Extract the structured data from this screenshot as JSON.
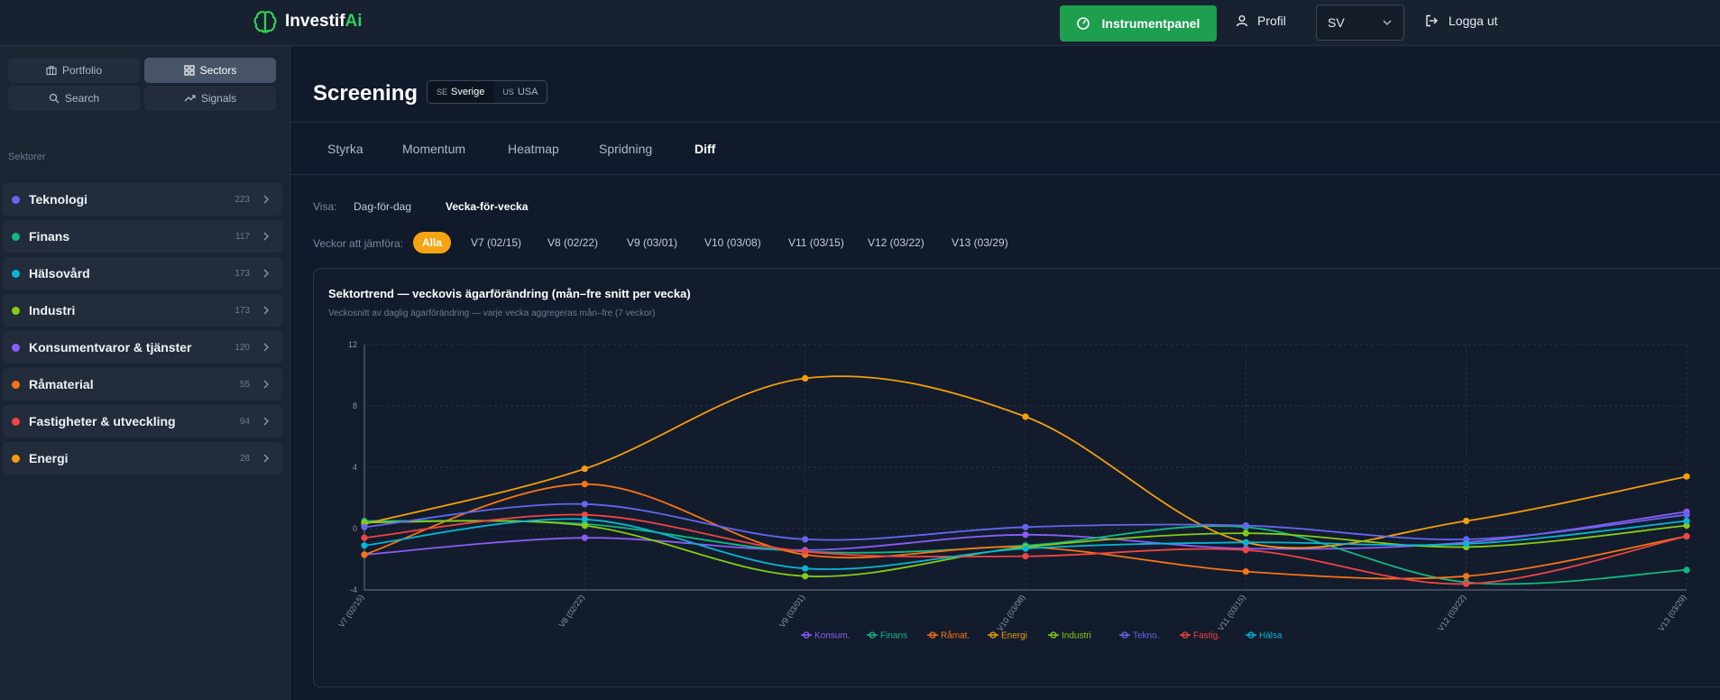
{
  "header": {
    "brand_name_main": "Investif",
    "brand_name_accent": "Ai",
    "dashboard_label": "Instrumentpanel",
    "profile_label": "Profil",
    "language_value": "SV",
    "logout_label": "Logga ut",
    "accent_color": "#1e9e4f"
  },
  "sidebar": {
    "nav": [
      {
        "label": "Portfolio",
        "icon": "briefcase-icon",
        "active": false
      },
      {
        "label": "Sectors",
        "icon": "grid-icon",
        "active": true
      },
      {
        "label": "Search",
        "icon": "search-icon",
        "active": false
      },
      {
        "label": "Signals",
        "icon": "trend-icon",
        "active": false
      }
    ],
    "heading": "Sektorer",
    "sectors": [
      {
        "label": "Teknologi",
        "count": "223",
        "color": "#6366f1"
      },
      {
        "label": "Finans",
        "count": "117",
        "color": "#10b981"
      },
      {
        "label": "Hälsovård",
        "count": "173",
        "color": "#06b6d4"
      },
      {
        "label": "Industri",
        "count": "173",
        "color": "#84cc16"
      },
      {
        "label": "Konsumentvaror & tjänster",
        "count": "120",
        "color": "#8b5cf6"
      },
      {
        "label": "Råmaterial",
        "count": "55",
        "color": "#f97316"
      },
      {
        "label": "Fastigheter & utveckling",
        "count": "94",
        "color": "#ef4444"
      },
      {
        "label": "Energi",
        "count": "28",
        "color": "#f59e0b"
      }
    ]
  },
  "main": {
    "title": "Screening",
    "markets": [
      {
        "code": "SE",
        "label": "Sverige",
        "active": true
      },
      {
        "code": "US",
        "label": "USA",
        "active": false
      }
    ],
    "tabs": [
      "Styrka",
      "Momentum",
      "Heatmap",
      "Spridning",
      "Diff"
    ],
    "active_tab": "Diff",
    "view_label": "Visa:",
    "view_options": [
      "Dag-för-dag",
      "Vecka-för-vecka"
    ],
    "active_view": "Vecka-för-vecka",
    "weeks_label": "Veckor att jämföra:",
    "weeks": [
      "Alla",
      "V7 (02/15)",
      "V8 (02/22)",
      "V9 (03/01)",
      "V10 (03/08)",
      "V11 (03/15)",
      "V12 (03/22)",
      "V13 (03/29)"
    ],
    "active_week": "Alla"
  },
  "chart_data": {
    "type": "line",
    "title": "Sektortrend — veckovis ägarförändring (mån–fre snitt per vecka)",
    "subtitle": "Veckosnitt av daglig ägarförändring — varje vecka aggregeras mån–fre (7 veckor)",
    "x": [
      "V7 (02/15)",
      "V8 (02/22)",
      "V9 (03/01)",
      "V10 (03/08)",
      "V11 (03/15)",
      "V12 (03/22)",
      "V13 (03/29)"
    ],
    "ylim": [
      -4,
      12
    ],
    "yticks": [
      12,
      8,
      4,
      0,
      -4
    ],
    "grid": true,
    "legend_position": "bottom",
    "series": [
      {
        "name": "Konsum.",
        "color": "#8b5cf6",
        "values": [
          -1.7,
          -0.6,
          -1.4,
          -0.4,
          -1.3,
          -0.9,
          1.1
        ]
      },
      {
        "name": "Finans",
        "color": "#10b981",
        "values": [
          0.5,
          0.3,
          -1.5,
          -1.1,
          0.1,
          -3.5,
          -2.7
        ]
      },
      {
        "name": "Råmat.",
        "color": "#f97316",
        "values": [
          -1.7,
          2.9,
          -1.7,
          -1.2,
          -2.8,
          -3.1,
          -0.5
        ]
      },
      {
        "name": "Energi",
        "color": "#f59e0b",
        "values": [
          0.3,
          3.9,
          9.8,
          7.3,
          -0.9,
          0.5,
          3.4
        ]
      },
      {
        "name": "Industri",
        "color": "#84cc16",
        "values": [
          0.4,
          0.2,
          -3.1,
          -1.2,
          -0.3,
          -1.2,
          0.2
        ]
      },
      {
        "name": "Tekno.",
        "color": "#6366f1",
        "values": [
          0.1,
          1.6,
          -0.7,
          0.1,
          0.2,
          -0.7,
          0.9
        ]
      },
      {
        "name": "Fastig.",
        "color": "#ef4444",
        "values": [
          -0.6,
          0.9,
          -1.5,
          -1.8,
          -1.4,
          -3.6,
          -0.5
        ]
      },
      {
        "name": "Hälsa",
        "color": "#06b6d4",
        "values": [
          -1.1,
          0.6,
          -2.6,
          -1.3,
          -0.9,
          -1.0,
          0.5
        ]
      }
    ]
  }
}
